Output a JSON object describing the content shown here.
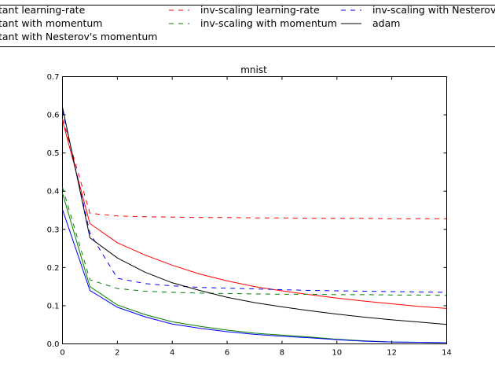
{
  "chart_data": {
    "type": "line",
    "title": "mnist",
    "xlabel": "",
    "ylabel": "",
    "xlim": [
      0,
      14
    ],
    "ylim": [
      0.0,
      0.7
    ],
    "xticks": [
      "0",
      "2",
      "4",
      "6",
      "8",
      "10",
      "12",
      "14"
    ],
    "yticks": [
      "0.0",
      "0.1",
      "0.2",
      "0.3",
      "0.4",
      "0.5",
      "0.6",
      "0.7"
    ],
    "grid": false,
    "legend_placement": "top",
    "x": [
      0,
      1,
      2,
      3,
      4,
      5,
      6,
      7,
      8,
      9,
      10,
      11,
      12,
      13,
      14
    ],
    "series": [
      {
        "name": "tant learning-rate",
        "color": "#ff0000",
        "style": "solid",
        "values": [
          0.585,
          0.315,
          0.265,
          0.233,
          0.206,
          0.183,
          0.165,
          0.15,
          0.139,
          0.129,
          0.12,
          0.112,
          0.105,
          0.098,
          0.093
        ]
      },
      {
        "name": "tant with momentum",
        "color": "#008000",
        "style": "solid",
        "values": [
          0.395,
          0.15,
          0.102,
          0.077,
          0.058,
          0.046,
          0.036,
          0.028,
          0.023,
          0.018,
          0.012,
          0.008,
          0.005,
          0.004,
          0.003
        ]
      },
      {
        "name": "tant with Nesterov's momentum",
        "color": "#0000ff",
        "style": "solid",
        "values": [
          0.352,
          0.14,
          0.096,
          0.071,
          0.052,
          0.041,
          0.032,
          0.025,
          0.02,
          0.016,
          0.011,
          0.007,
          0.005,
          0.004,
          0.003
        ]
      },
      {
        "name": "inv-scaling learning-rate",
        "color": "#ff0000",
        "style": "dashed",
        "values": [
          0.59,
          0.342,
          0.335,
          0.333,
          0.332,
          0.331,
          0.331,
          0.33,
          0.33,
          0.329,
          0.329,
          0.329,
          0.328,
          0.328,
          0.328
        ]
      },
      {
        "name": "inv-scaling with momentum",
        "color": "#008000",
        "style": "dashed",
        "values": [
          0.41,
          0.168,
          0.145,
          0.138,
          0.135,
          0.133,
          0.132,
          0.131,
          0.13,
          0.13,
          0.129,
          0.129,
          0.128,
          0.128,
          0.127
        ]
      },
      {
        "name": "inv-scaling with Nesterov's m",
        "color": "#0000ff",
        "style": "dashed",
        "values": [
          0.612,
          0.29,
          0.172,
          0.158,
          0.152,
          0.148,
          0.146,
          0.144,
          0.142,
          0.14,
          0.139,
          0.138,
          0.137,
          0.136,
          0.135
        ]
      },
      {
        "name": "adam",
        "color": "#000000",
        "style": "solid",
        "values": [
          0.62,
          0.278,
          0.225,
          0.188,
          0.16,
          0.14,
          0.122,
          0.108,
          0.097,
          0.087,
          0.078,
          0.07,
          0.063,
          0.057,
          0.051
        ]
      }
    ]
  }
}
